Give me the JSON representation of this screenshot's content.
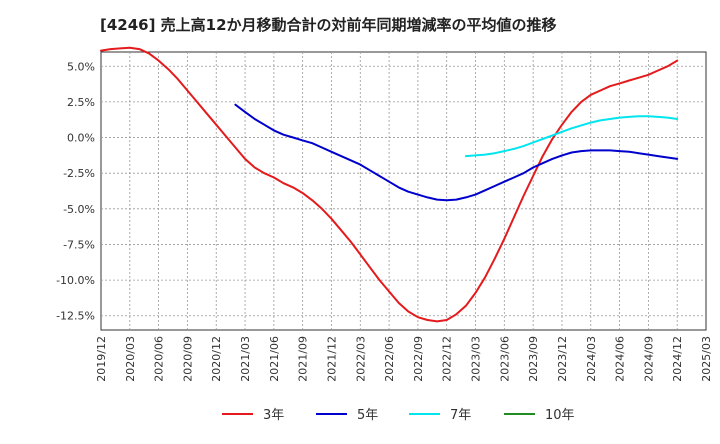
{
  "chart_data": {
    "type": "line",
    "title": "[4246]  売上高12か月移動合計の対前年同期増減率の平均値の推移",
    "xlabel": "",
    "ylabel": "",
    "y_unit": "%",
    "ylim": [
      -13.5,
      6.0
    ],
    "y_ticks": [
      5.0,
      2.5,
      0.0,
      -2.5,
      -5.0,
      -7.5,
      -10.0,
      -12.5
    ],
    "y_tick_labels": [
      "5.0%",
      "2.5%",
      "0.0%",
      "-2.5%",
      "-5.0%",
      "-7.5%",
      "-10.0%",
      "-12.5%"
    ],
    "x_range": [
      "2019-12",
      "2025-03"
    ],
    "x_tick_labels": [
      "2019/12",
      "2020/03",
      "2020/06",
      "2020/09",
      "2020/12",
      "2021/03",
      "2021/06",
      "2021/09",
      "2021/12",
      "2022/03",
      "2022/06",
      "2022/09",
      "2022/12",
      "2023/03",
      "2023/06",
      "2023/09",
      "2023/12",
      "2024/03",
      "2024/06",
      "2024/09",
      "2024/12",
      "2025/03"
    ],
    "grid": true,
    "legend_position": "bottom",
    "series": [
      {
        "name": "3年",
        "color": "#e41a1c",
        "points": [
          [
            "2019-12",
            6.1
          ],
          [
            "2020-01",
            6.2
          ],
          [
            "2020-02",
            6.25
          ],
          [
            "2020-03",
            6.3
          ],
          [
            "2020-04",
            6.2
          ],
          [
            "2020-05",
            5.9
          ],
          [
            "2020-06",
            5.4
          ],
          [
            "2020-07",
            4.8
          ],
          [
            "2020-08",
            4.1
          ],
          [
            "2020-09",
            3.3
          ],
          [
            "2020-10",
            2.5
          ],
          [
            "2020-11",
            1.7
          ],
          [
            "2020-12",
            0.9
          ],
          [
            "2021-01",
            0.1
          ],
          [
            "2021-02",
            -0.7
          ],
          [
            "2021-03",
            -1.5
          ],
          [
            "2021-04",
            -2.1
          ],
          [
            "2021-05",
            -2.5
          ],
          [
            "2021-06",
            -2.8
          ],
          [
            "2021-07",
            -3.2
          ],
          [
            "2021-08",
            -3.5
          ],
          [
            "2021-09",
            -3.9
          ],
          [
            "2021-10",
            -4.4
          ],
          [
            "2021-11",
            -5.0
          ],
          [
            "2021-12",
            -5.7
          ],
          [
            "2022-01",
            -6.5
          ],
          [
            "2022-02",
            -7.3
          ],
          [
            "2022-03",
            -8.2
          ],
          [
            "2022-04",
            -9.1
          ],
          [
            "2022-05",
            -10.0
          ],
          [
            "2022-06",
            -10.8
          ],
          [
            "2022-07",
            -11.6
          ],
          [
            "2022-08",
            -12.2
          ],
          [
            "2022-09",
            -12.6
          ],
          [
            "2022-10",
            -12.8
          ],
          [
            "2022-11",
            -12.9
          ],
          [
            "2022-12",
            -12.8
          ],
          [
            "2023-01",
            -12.4
          ],
          [
            "2023-02",
            -11.8
          ],
          [
            "2023-03",
            -10.9
          ],
          [
            "2023-04",
            -9.8
          ],
          [
            "2023-05",
            -8.5
          ],
          [
            "2023-06",
            -7.1
          ],
          [
            "2023-07",
            -5.6
          ],
          [
            "2023-08",
            -4.1
          ],
          [
            "2023-09",
            -2.7
          ],
          [
            "2023-10",
            -1.3
          ],
          [
            "2023-11",
            -0.1
          ],
          [
            "2023-12",
            0.9
          ],
          [
            "2024-01",
            1.8
          ],
          [
            "2024-02",
            2.5
          ],
          [
            "2024-03",
            3.0
          ],
          [
            "2024-04",
            3.3
          ],
          [
            "2024-05",
            3.6
          ],
          [
            "2024-06",
            3.8
          ],
          [
            "2024-07",
            4.0
          ],
          [
            "2024-08",
            4.2
          ],
          [
            "2024-09",
            4.4
          ],
          [
            "2024-10",
            4.7
          ],
          [
            "2024-11",
            5.0
          ],
          [
            "2024-12",
            5.4
          ]
        ]
      },
      {
        "name": "5年",
        "color": "#0000cc",
        "points": [
          [
            "2021-02",
            2.3
          ],
          [
            "2021-03",
            1.8
          ],
          [
            "2021-04",
            1.3
          ],
          [
            "2021-05",
            0.9
          ],
          [
            "2021-06",
            0.5
          ],
          [
            "2021-07",
            0.2
          ],
          [
            "2021-08",
            0.0
          ],
          [
            "2021-09",
            -0.2
          ],
          [
            "2021-10",
            -0.4
          ],
          [
            "2021-11",
            -0.7
          ],
          [
            "2021-12",
            -1.0
          ],
          [
            "2022-01",
            -1.3
          ],
          [
            "2022-02",
            -1.6
          ],
          [
            "2022-03",
            -1.9
          ],
          [
            "2022-04",
            -2.3
          ],
          [
            "2022-05",
            -2.7
          ],
          [
            "2022-06",
            -3.1
          ],
          [
            "2022-07",
            -3.5
          ],
          [
            "2022-08",
            -3.8
          ],
          [
            "2022-09",
            -4.0
          ],
          [
            "2022-10",
            -4.2
          ],
          [
            "2022-11",
            -4.35
          ],
          [
            "2022-12",
            -4.4
          ],
          [
            "2023-01",
            -4.35
          ],
          [
            "2023-02",
            -4.2
          ],
          [
            "2023-03",
            -4.0
          ],
          [
            "2023-04",
            -3.7
          ],
          [
            "2023-05",
            -3.4
          ],
          [
            "2023-06",
            -3.1
          ],
          [
            "2023-07",
            -2.8
          ],
          [
            "2023-08",
            -2.5
          ],
          [
            "2023-09",
            -2.1
          ],
          [
            "2023-10",
            -1.8
          ],
          [
            "2023-11",
            -1.5
          ],
          [
            "2023-12",
            -1.25
          ],
          [
            "2024-01",
            -1.05
          ],
          [
            "2024-02",
            -0.95
          ],
          [
            "2024-03",
            -0.9
          ],
          [
            "2024-04",
            -0.9
          ],
          [
            "2024-05",
            -0.9
          ],
          [
            "2024-06",
            -0.95
          ],
          [
            "2024-07",
            -1.0
          ],
          [
            "2024-08",
            -1.1
          ],
          [
            "2024-09",
            -1.2
          ],
          [
            "2024-10",
            -1.3
          ],
          [
            "2024-11",
            -1.4
          ],
          [
            "2024-12",
            -1.5
          ]
        ]
      },
      {
        "name": "7年",
        "color": "#00e5ee",
        "points": [
          [
            "2023-02",
            -1.3
          ],
          [
            "2023-03",
            -1.25
          ],
          [
            "2023-04",
            -1.2
          ],
          [
            "2023-05",
            -1.1
          ],
          [
            "2023-06",
            -0.95
          ],
          [
            "2023-07",
            -0.8
          ],
          [
            "2023-08",
            -0.6
          ],
          [
            "2023-09",
            -0.35
          ],
          [
            "2023-10",
            -0.1
          ],
          [
            "2023-11",
            0.15
          ],
          [
            "2023-12",
            0.4
          ],
          [
            "2024-01",
            0.65
          ],
          [
            "2024-02",
            0.85
          ],
          [
            "2024-03",
            1.05
          ],
          [
            "2024-04",
            1.2
          ],
          [
            "2024-05",
            1.3
          ],
          [
            "2024-06",
            1.4
          ],
          [
            "2024-07",
            1.45
          ],
          [
            "2024-08",
            1.5
          ],
          [
            "2024-09",
            1.5
          ],
          [
            "2024-10",
            1.45
          ],
          [
            "2024-11",
            1.4
          ],
          [
            "2024-12",
            1.3
          ]
        ]
      },
      {
        "name": "10年",
        "color": "#228b22",
        "points": []
      }
    ]
  }
}
